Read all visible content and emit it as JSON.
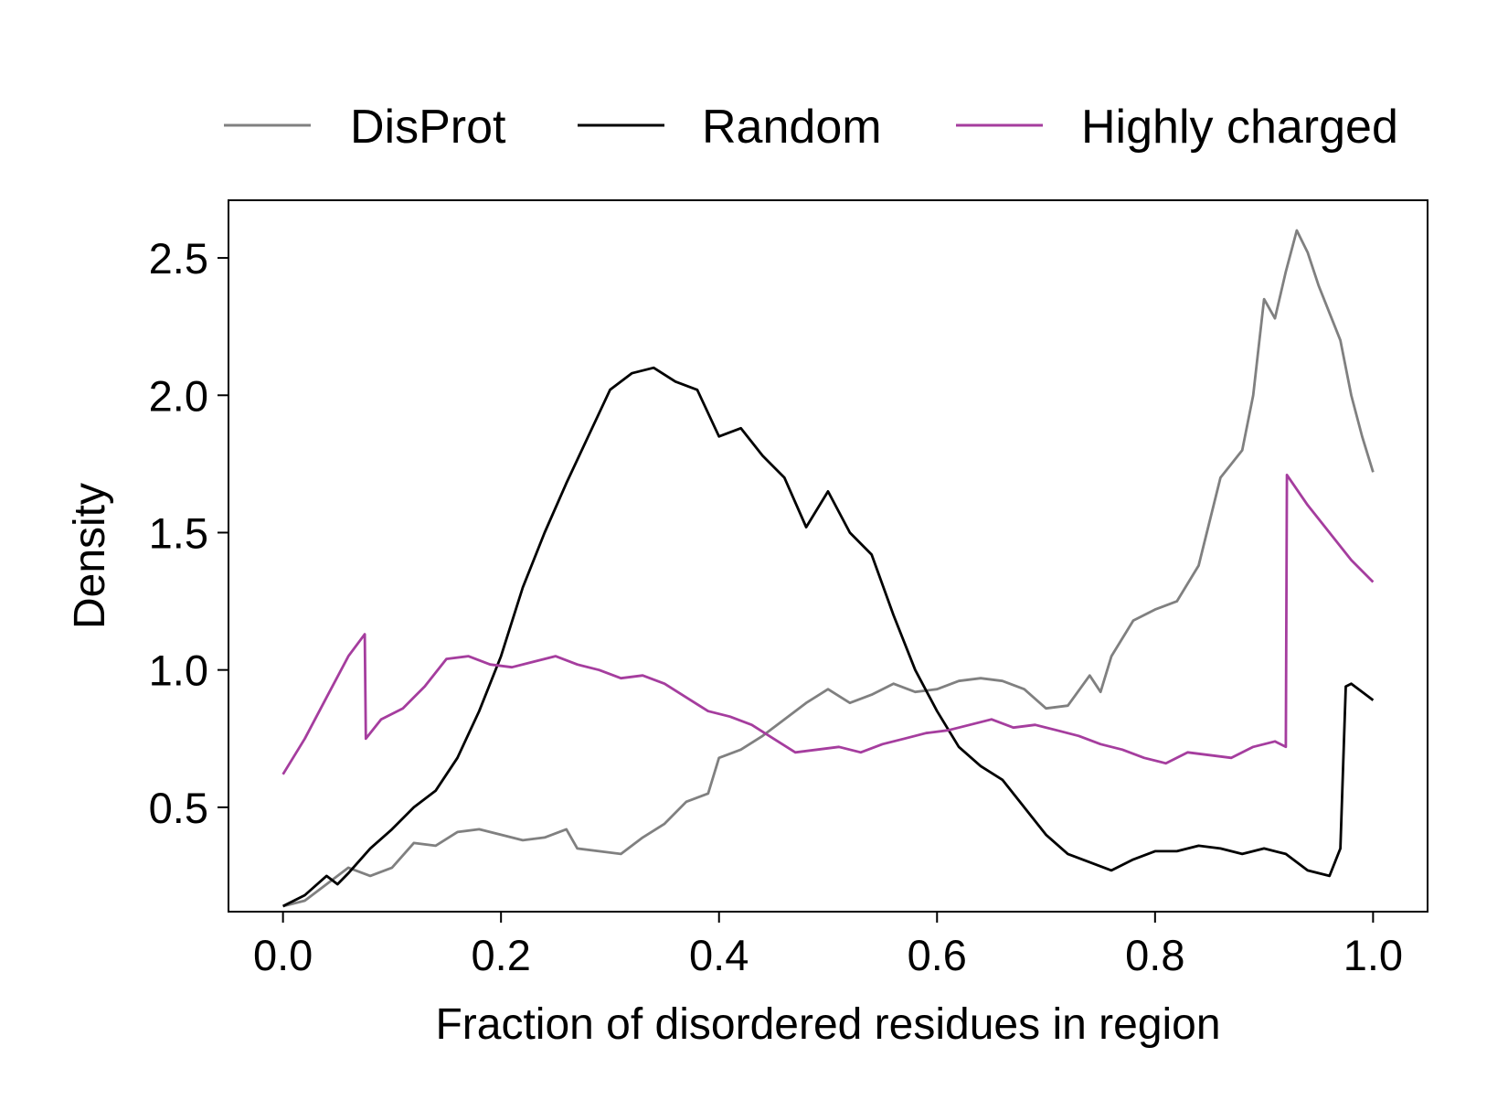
{
  "chart_data": {
    "type": "line",
    "xlabel": "Fraction of disordered residues in region",
    "ylabel": "Density",
    "xlim": [
      -0.05,
      1.05
    ],
    "ylim": [
      0.12,
      2.71
    ],
    "xticks": [
      0.0,
      0.2,
      0.4,
      0.6,
      0.8,
      1.0
    ],
    "xtick_labels": [
      "0.0",
      "0.2",
      "0.4",
      "0.6",
      "0.8",
      "1.0"
    ],
    "yticks": [
      0.5,
      1.0,
      1.5,
      2.0,
      2.5
    ],
    "ytick_labels": [
      "0.5",
      "1.0",
      "1.5",
      "2.0",
      "2.5"
    ],
    "grid": false,
    "legend_position": "top, above plot",
    "series": [
      {
        "name": "DisProt",
        "color": "#808080",
        "points": [
          [
            0.0,
            0.14
          ],
          [
            0.02,
            0.16
          ],
          [
            0.04,
            0.22
          ],
          [
            0.06,
            0.28
          ],
          [
            0.08,
            0.25
          ],
          [
            0.1,
            0.28
          ],
          [
            0.12,
            0.37
          ],
          [
            0.14,
            0.36
          ],
          [
            0.16,
            0.41
          ],
          [
            0.18,
            0.42
          ],
          [
            0.2,
            0.4
          ],
          [
            0.22,
            0.38
          ],
          [
            0.24,
            0.39
          ],
          [
            0.26,
            0.42
          ],
          [
            0.27,
            0.35
          ],
          [
            0.29,
            0.34
          ],
          [
            0.31,
            0.33
          ],
          [
            0.33,
            0.39
          ],
          [
            0.35,
            0.44
          ],
          [
            0.37,
            0.52
          ],
          [
            0.39,
            0.55
          ],
          [
            0.4,
            0.68
          ],
          [
            0.42,
            0.71
          ],
          [
            0.44,
            0.76
          ],
          [
            0.46,
            0.82
          ],
          [
            0.48,
            0.88
          ],
          [
            0.5,
            0.93
          ],
          [
            0.52,
            0.88
          ],
          [
            0.54,
            0.91
          ],
          [
            0.56,
            0.95
          ],
          [
            0.58,
            0.92
          ],
          [
            0.6,
            0.93
          ],
          [
            0.62,
            0.96
          ],
          [
            0.64,
            0.97
          ],
          [
            0.66,
            0.96
          ],
          [
            0.68,
            0.93
          ],
          [
            0.7,
            0.86
          ],
          [
            0.72,
            0.87
          ],
          [
            0.74,
            0.98
          ],
          [
            0.75,
            0.92
          ],
          [
            0.76,
            1.05
          ],
          [
            0.78,
            1.18
          ],
          [
            0.8,
            1.22
          ],
          [
            0.82,
            1.25
          ],
          [
            0.84,
            1.38
          ],
          [
            0.86,
            1.7
          ],
          [
            0.88,
            1.8
          ],
          [
            0.89,
            2.0
          ],
          [
            0.9,
            2.35
          ],
          [
            0.91,
            2.28
          ],
          [
            0.92,
            2.45
          ],
          [
            0.93,
            2.6
          ],
          [
            0.94,
            2.52
          ],
          [
            0.95,
            2.4
          ],
          [
            0.97,
            2.2
          ],
          [
            0.98,
            2.0
          ],
          [
            0.99,
            1.85
          ],
          [
            1.0,
            1.72
          ]
        ]
      },
      {
        "name": "Random",
        "color": "#000000",
        "points": [
          [
            0.0,
            0.14
          ],
          [
            0.02,
            0.18
          ],
          [
            0.04,
            0.25
          ],
          [
            0.05,
            0.22
          ],
          [
            0.06,
            0.26
          ],
          [
            0.08,
            0.35
          ],
          [
            0.1,
            0.42
          ],
          [
            0.12,
            0.5
          ],
          [
            0.14,
            0.56
          ],
          [
            0.16,
            0.68
          ],
          [
            0.18,
            0.85
          ],
          [
            0.2,
            1.05
          ],
          [
            0.22,
            1.3
          ],
          [
            0.24,
            1.5
          ],
          [
            0.26,
            1.68
          ],
          [
            0.28,
            1.85
          ],
          [
            0.3,
            2.02
          ],
          [
            0.32,
            2.08
          ],
          [
            0.34,
            2.1
          ],
          [
            0.36,
            2.05
          ],
          [
            0.38,
            2.02
          ],
          [
            0.4,
            1.85
          ],
          [
            0.42,
            1.88
          ],
          [
            0.44,
            1.78
          ],
          [
            0.46,
            1.7
          ],
          [
            0.48,
            1.52
          ],
          [
            0.5,
            1.65
          ],
          [
            0.52,
            1.5
          ],
          [
            0.54,
            1.42
          ],
          [
            0.56,
            1.2
          ],
          [
            0.58,
            1.0
          ],
          [
            0.6,
            0.85
          ],
          [
            0.62,
            0.72
          ],
          [
            0.64,
            0.65
          ],
          [
            0.66,
            0.6
          ],
          [
            0.68,
            0.5
          ],
          [
            0.7,
            0.4
          ],
          [
            0.72,
            0.33
          ],
          [
            0.74,
            0.3
          ],
          [
            0.76,
            0.27
          ],
          [
            0.78,
            0.31
          ],
          [
            0.8,
            0.34
          ],
          [
            0.82,
            0.34
          ],
          [
            0.84,
            0.36
          ],
          [
            0.86,
            0.35
          ],
          [
            0.88,
            0.33
          ],
          [
            0.9,
            0.35
          ],
          [
            0.92,
            0.33
          ],
          [
            0.94,
            0.27
          ],
          [
            0.96,
            0.25
          ],
          [
            0.97,
            0.35
          ],
          [
            0.975,
            0.94
          ],
          [
            0.98,
            0.95
          ],
          [
            1.0,
            0.89
          ]
        ]
      },
      {
        "name": "Highly charged",
        "color": "#a53d9e",
        "points": [
          [
            0.0,
            0.62
          ],
          [
            0.02,
            0.75
          ],
          [
            0.04,
            0.9
          ],
          [
            0.06,
            1.05
          ],
          [
            0.075,
            1.13
          ],
          [
            0.076,
            0.75
          ],
          [
            0.09,
            0.82
          ],
          [
            0.11,
            0.86
          ],
          [
            0.13,
            0.94
          ],
          [
            0.15,
            1.04
          ],
          [
            0.17,
            1.05
          ],
          [
            0.19,
            1.02
          ],
          [
            0.21,
            1.01
          ],
          [
            0.23,
            1.03
          ],
          [
            0.25,
            1.05
          ],
          [
            0.27,
            1.02
          ],
          [
            0.29,
            1.0
          ],
          [
            0.31,
            0.97
          ],
          [
            0.33,
            0.98
          ],
          [
            0.35,
            0.95
          ],
          [
            0.37,
            0.9
          ],
          [
            0.39,
            0.85
          ],
          [
            0.41,
            0.83
          ],
          [
            0.43,
            0.8
          ],
          [
            0.45,
            0.75
          ],
          [
            0.47,
            0.7
          ],
          [
            0.49,
            0.71
          ],
          [
            0.51,
            0.72
          ],
          [
            0.53,
            0.7
          ],
          [
            0.55,
            0.73
          ],
          [
            0.57,
            0.75
          ],
          [
            0.59,
            0.77
          ],
          [
            0.61,
            0.78
          ],
          [
            0.63,
            0.8
          ],
          [
            0.65,
            0.82
          ],
          [
            0.67,
            0.79
          ],
          [
            0.69,
            0.8
          ],
          [
            0.71,
            0.78
          ],
          [
            0.73,
            0.76
          ],
          [
            0.75,
            0.73
          ],
          [
            0.77,
            0.71
          ],
          [
            0.79,
            0.68
          ],
          [
            0.81,
            0.66
          ],
          [
            0.83,
            0.7
          ],
          [
            0.85,
            0.69
          ],
          [
            0.87,
            0.68
          ],
          [
            0.89,
            0.72
          ],
          [
            0.91,
            0.74
          ],
          [
            0.92,
            0.72
          ],
          [
            0.921,
            1.71
          ],
          [
            0.94,
            1.6
          ],
          [
            0.96,
            1.5
          ],
          [
            0.98,
            1.4
          ],
          [
            1.0,
            1.32
          ]
        ]
      }
    ]
  }
}
